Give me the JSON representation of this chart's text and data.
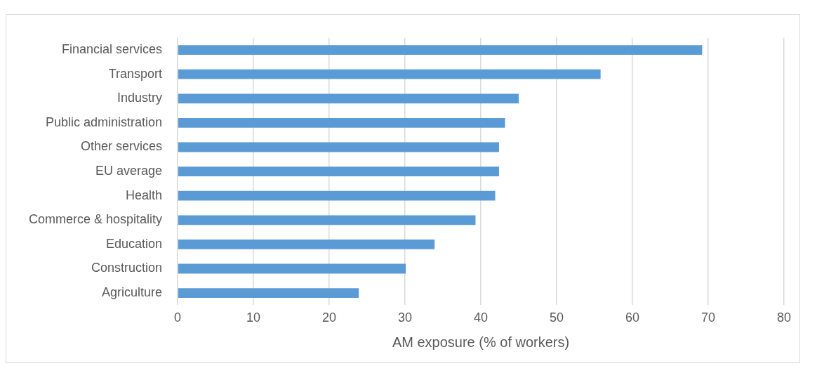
{
  "chart_data": {
    "type": "bar",
    "orientation": "horizontal",
    "xlabel": "AM exposure (% of workers)",
    "categories": [
      "Financial services",
      "Transport",
      "Industry",
      "Public administration",
      "Other services",
      "EU average",
      "Health",
      "Commerce & hospitality",
      "Education",
      "Construction",
      "Agriculture"
    ],
    "values": [
      69.2,
      55.8,
      45.0,
      43.2,
      42.4,
      42.4,
      41.9,
      39.3,
      33.9,
      30.1,
      23.9
    ],
    "color": "#5b9bd5",
    "xlim": [
      0,
      80
    ],
    "xticks": [
      0,
      10,
      20,
      30,
      40,
      50,
      60,
      70,
      80
    ],
    "grid": "x",
    "legend": false
  }
}
